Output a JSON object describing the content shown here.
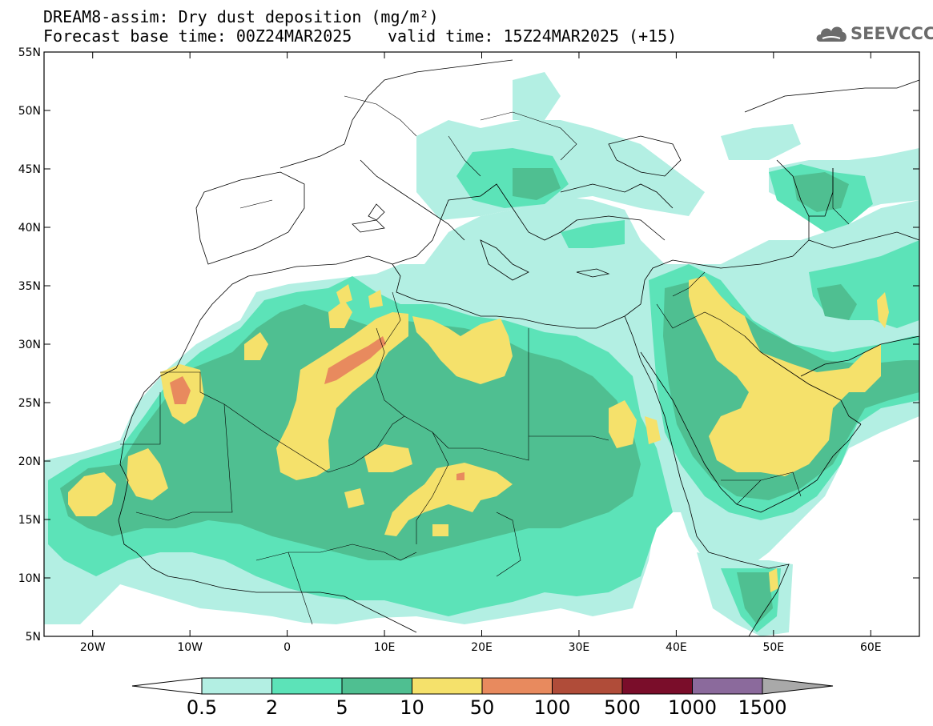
{
  "header": {
    "title_line1": "DREAM8-assim: Dry dust deposition (mg/m²)",
    "title_line2_left": "Forecast base time: 00Z24MAR2025",
    "title_line2_right": "valid time: 15Z24MAR2025 (+15)",
    "logo_text": "SEEVCCC",
    "logo_icon": "cloud-icon"
  },
  "map": {
    "lon_range": [
      -25,
      65
    ],
    "lat_range": [
      5,
      55
    ],
    "lat_ticks": [
      "5N",
      "10N",
      "15N",
      "20N",
      "25N",
      "30N",
      "35N",
      "40N",
      "45N",
      "50N",
      "55N"
    ],
    "lon_ticks": [
      "20W",
      "10W",
      "0",
      "10E",
      "20E",
      "30E",
      "40E",
      "50E",
      "60E"
    ]
  },
  "colorbar": {
    "labels": [
      "0.5",
      "2",
      "5",
      "10",
      "50",
      "100",
      "500",
      "1000",
      "1500"
    ],
    "colors": [
      "#b3efe3",
      "#5ce3b8",
      "#4fbf91",
      "#f5e16b",
      "#e88a5e",
      "#b04c39",
      "#7a0d2a",
      "#8b6a9c",
      "#a9a9a9"
    ]
  },
  "palette": {
    "c1": "#b3efe3",
    "c2": "#5ce3b8",
    "c3": "#4fbf91",
    "c4": "#f5e16b",
    "c5": "#e88a5e"
  }
}
